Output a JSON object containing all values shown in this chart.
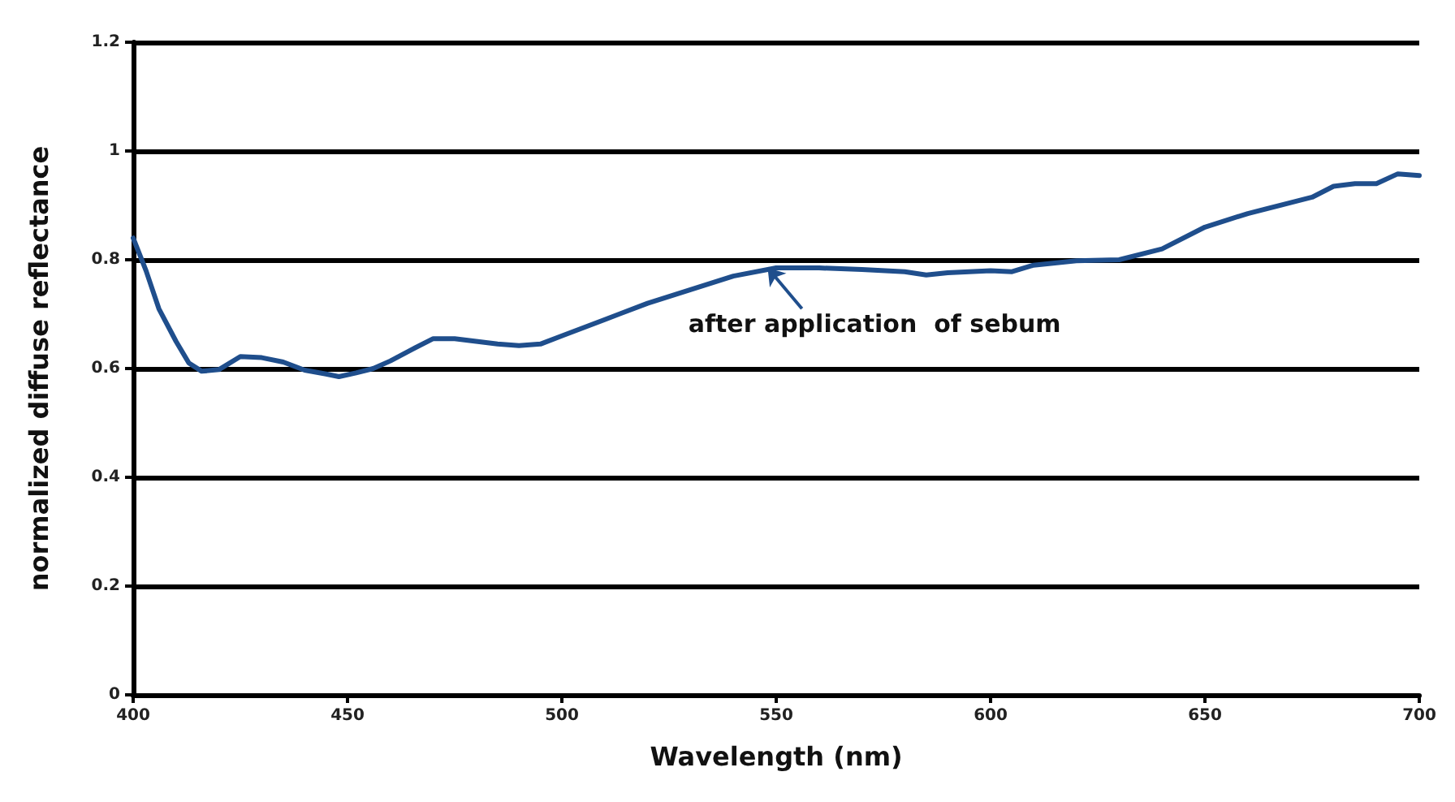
{
  "chart_data": {
    "type": "line",
    "xlabel": "Wavelength (nm)",
    "ylabel": "normalized diffuse reflectance",
    "xlim": [
      400,
      700
    ],
    "xticks": [
      400,
      450,
      500,
      550,
      600,
      650,
      700
    ],
    "ylim": [
      0,
      1.2
    ],
    "yticks": [
      0,
      0.2,
      0.4,
      0.6,
      0.8,
      1,
      1.2
    ],
    "grid": "y",
    "marker": "none",
    "line_style": "solid",
    "annotations": [
      {
        "text": "after application  of sebum",
        "x": 548,
        "y": 0.785
      }
    ],
    "series": [
      {
        "color": "#1f4e8c",
        "x": [
          400,
          403,
          406,
          410,
          413,
          416,
          420,
          425,
          430,
          435,
          440,
          445,
          448,
          452,
          456,
          460,
          465,
          470,
          475,
          480,
          485,
          490,
          495,
          500,
          510,
          520,
          530,
          540,
          550,
          560,
          570,
          580,
          585,
          590,
          600,
          605,
          610,
          620,
          630,
          640,
          650,
          660,
          670,
          675,
          680,
          685,
          690,
          695,
          700
        ],
        "values": [
          0.84,
          0.78,
          0.71,
          0.65,
          0.61,
          0.595,
          0.598,
          0.622,
          0.62,
          0.612,
          0.597,
          0.59,
          0.585,
          0.592,
          0.6,
          0.614,
          0.635,
          0.655,
          0.655,
          0.65,
          0.645,
          0.642,
          0.645,
          0.66,
          0.69,
          0.72,
          0.745,
          0.77,
          0.785,
          0.785,
          0.782,
          0.778,
          0.772,
          0.776,
          0.78,
          0.778,
          0.79,
          0.798,
          0.8,
          0.82,
          0.86,
          0.885,
          0.905,
          0.915,
          0.935,
          0.94,
          0.94,
          0.958,
          0.955
        ]
      }
    ]
  }
}
